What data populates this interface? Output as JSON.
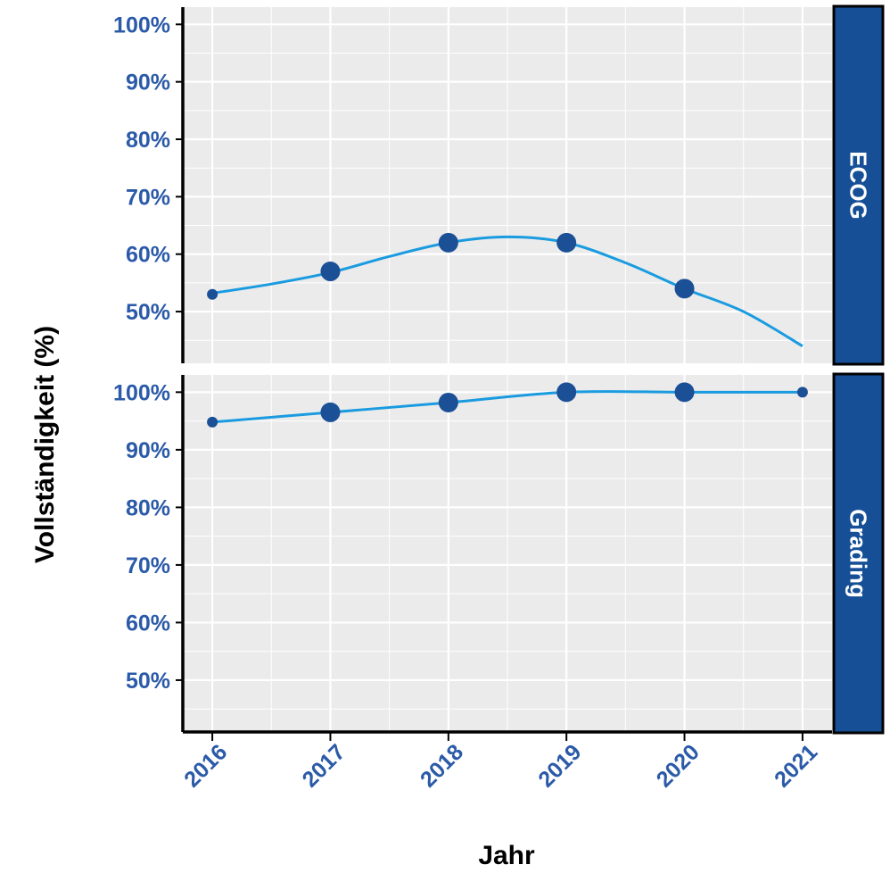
{
  "chart_data": {
    "type": "line",
    "xlabel": "Jahr",
    "ylabel": "Vollständigkeit (%)",
    "x_ticks": [
      "2016",
      "2017",
      "2018",
      "2019",
      "2020",
      "2021"
    ],
    "y_ticks": [
      "100%",
      "90%",
      "80%",
      "70%",
      "60%",
      "50%"
    ],
    "ylim": [
      41,
      103
    ],
    "xlim": [
      2015.75,
      2021.25
    ],
    "grid": true,
    "colors": {
      "line": "#1a9be0",
      "point": "#1b4f96",
      "strip": "#164f96",
      "tick_text": "#2b5aa8",
      "panel_bg": "#ebebeb",
      "grid": "#ffffff"
    },
    "panels": [
      {
        "strip": "ECOG",
        "points": [
          {
            "x": 2016,
            "y": 53,
            "n": "small"
          },
          {
            "x": 2017,
            "y": 57,
            "n": "large"
          },
          {
            "x": 2018,
            "y": 62,
            "n": "large"
          },
          {
            "x": 2019,
            "y": 62,
            "n": "large"
          },
          {
            "x": 2020,
            "y": 54,
            "n": "large"
          }
        ],
        "line": [
          {
            "x": 2016,
            "y": 53.2
          },
          {
            "x": 2016.5,
            "y": 54.8
          },
          {
            "x": 2017,
            "y": 56.8
          },
          {
            "x": 2017.5,
            "y": 59.6
          },
          {
            "x": 2018,
            "y": 62
          },
          {
            "x": 2018.5,
            "y": 63
          },
          {
            "x": 2019,
            "y": 62
          },
          {
            "x": 2019.5,
            "y": 58.5
          },
          {
            "x": 2020,
            "y": 54
          },
          {
            "x": 2020.5,
            "y": 50
          },
          {
            "x": 2021,
            "y": 44
          }
        ]
      },
      {
        "strip": "Grading",
        "points": [
          {
            "x": 2016,
            "y": 94.8,
            "n": "small"
          },
          {
            "x": 2017,
            "y": 96.5,
            "n": "large"
          },
          {
            "x": 2018,
            "y": 98.2,
            "n": "large"
          },
          {
            "x": 2019,
            "y": 100,
            "n": "large"
          },
          {
            "x": 2020,
            "y": 100,
            "n": "large"
          },
          {
            "x": 2021,
            "y": 100,
            "n": "small"
          }
        ],
        "line": [
          {
            "x": 2016,
            "y": 94.8
          },
          {
            "x": 2017,
            "y": 96.5
          },
          {
            "x": 2018,
            "y": 98.2
          },
          {
            "x": 2019,
            "y": 100
          },
          {
            "x": 2020,
            "y": 100
          },
          {
            "x": 2021,
            "y": 100
          }
        ]
      }
    ]
  }
}
